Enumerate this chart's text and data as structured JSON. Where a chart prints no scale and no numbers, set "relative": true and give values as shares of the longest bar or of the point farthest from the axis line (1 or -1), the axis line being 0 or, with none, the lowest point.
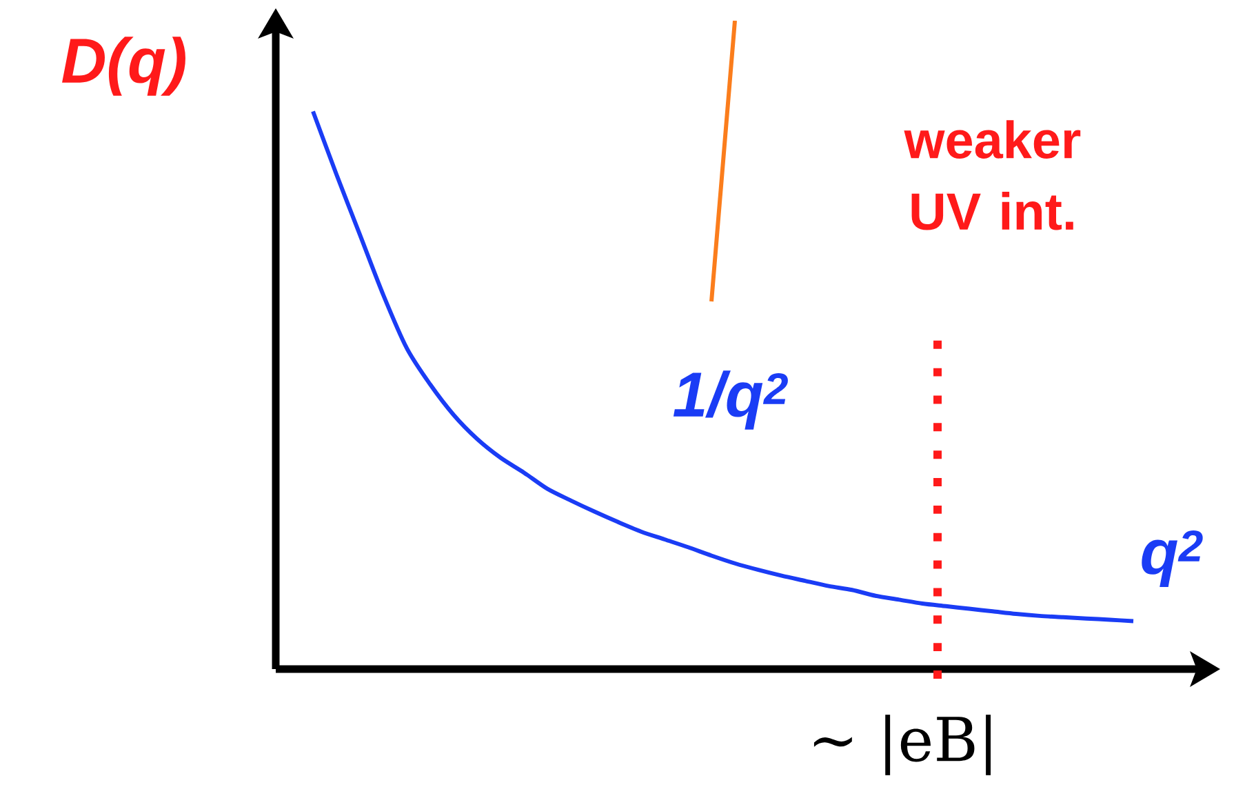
{
  "chart_data": {
    "type": "line",
    "relative": true,
    "xlabel": "q$^{2}$",
    "ylabel": "D(q)",
    "categories": [
      null,
      null,
      null,
      null,
      null,
      null,
      null,
      null,
      null,
      null,
      null,
      null,
      null,
      null,
      null,
      null,
      null,
      null,
      null,
      null,
      null,
      null,
      null,
      null,
      null,
      null,
      null,
      null,
      null,
      null,
      null,
      null,
      null,
      null,
      null,
      null,
      null,
      null,
      null,
      null
    ],
    "series": [
      {
        "color": "#1a3cf5",
        "values": [
          null,
          0.86,
          0.763,
          0.67,
          0.577,
          0.495,
          0.439,
          0.392,
          0.355,
          0.326,
          0.303,
          0.278,
          0.26,
          0.243,
          0.227,
          0.212,
          0.2,
          0.188,
          0.175,
          0.163,
          0.153,
          0.144,
          0.136,
          0.128,
          0.122,
          0.113,
          0.107,
          0.101,
          0.097,
          0.093,
          0.089,
          0.085,
          0.082,
          0.08,
          0.078,
          0.076,
          0.074,
          null,
          null,
          null
        ]
      },
      {
        "color": "#fb7d1c",
        "values": [
          null,
          null,
          null,
          null,
          null,
          null,
          null,
          null,
          null,
          null,
          null,
          null,
          null,
          null,
          null,
          null,
          null,
          null,
          0.567,
          1.0,
          null,
          null,
          null,
          null,
          null,
          null,
          null,
          null,
          null,
          null,
          null,
          null,
          null,
          null,
          null,
          null,
          null,
          null,
          null,
          null
        ]
      }
    ],
    "annotations": [
      "weaker UV int.",
      "1/q$^{2}$",
      "∼ |eB|"
    ]
  }
}
